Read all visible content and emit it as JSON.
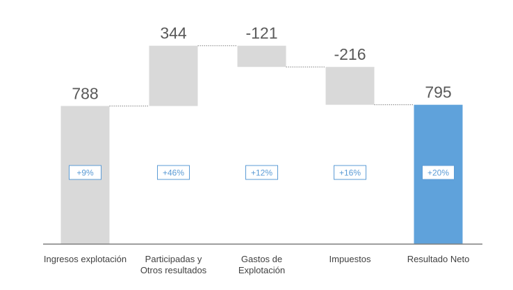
{
  "chart_data": {
    "type": "bar",
    "subtype": "waterfall",
    "categories": [
      "Ingresos explotación",
      "Participadas y Otros resultados",
      "Gastos de Explotación",
      "Impuestos",
      "Resultado Neto"
    ],
    "category_lines": [
      [
        "Ingresos explotación"
      ],
      [
        "Participadas y",
        "Otros resultados"
      ],
      [
        "Gastos de",
        "Explotación"
      ],
      [
        "Impuestos"
      ],
      [
        "Resultado Neto"
      ]
    ],
    "values": [
      788,
      344,
      -121,
      -216,
      795
    ],
    "value_labels": [
      "788",
      "344",
      "-121",
      "-216",
      "795"
    ],
    "bar_kind": [
      "total",
      "delta",
      "delta",
      "delta",
      "total"
    ],
    "badges": [
      "+9%",
      "+46%",
      "+12%",
      "+16%",
      "+20%"
    ],
    "ylim": [
      0,
      1150
    ],
    "grid": false,
    "legend": "none",
    "colors": {
      "total_bar": "#d9d9d9",
      "delta_bar": "#d9d9d9",
      "final_bar": "#5fa2db",
      "badge": "#5b9bd5",
      "value_text": "#595959",
      "axis": "#7f7f7f"
    }
  }
}
